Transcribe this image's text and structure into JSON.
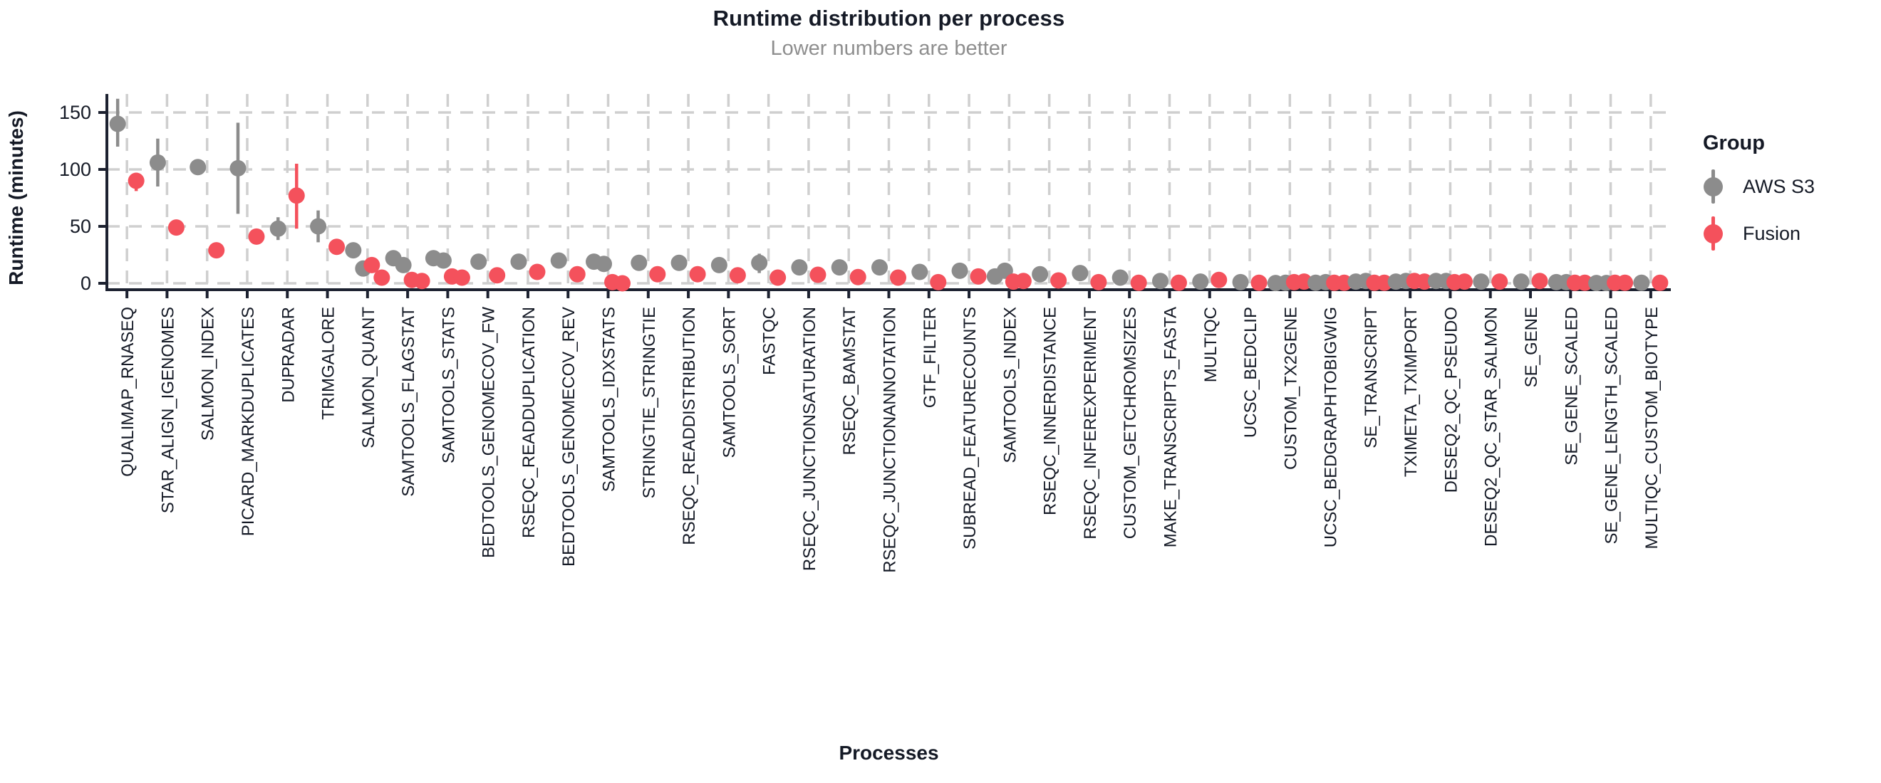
{
  "chart_data": {
    "type": "pointrange",
    "title": "Runtime distribution per process",
    "subtitle": "Lower numbers are better",
    "xlabel": "Processes",
    "ylabel": "Runtime (minutes)",
    "yticks": [
      0,
      50,
      100,
      150
    ],
    "ylim": [
      -10,
      170
    ],
    "grid": "dashed, horizontal at yticks and vertical at each category",
    "legend_position": "right",
    "legend": {
      "title": "Group",
      "series": [
        {
          "name": "AWS S3",
          "color": "#8C8C8C"
        },
        {
          "name": "Fusion",
          "color": "#F4515C"
        }
      ]
    },
    "categories": [
      {
        "name": "QUALIMAP_RNASEQ",
        "aws": {
          "points": [
            140
          ],
          "range": [
            120,
            162
          ]
        },
        "fusion": {
          "points": [
            90
          ],
          "range": [
            81,
            97
          ]
        }
      },
      {
        "name": "STAR_ALIGN_IGENOMES",
        "aws": {
          "points": [
            106
          ],
          "range": [
            85,
            127
          ]
        },
        "fusion": {
          "points": [
            49
          ],
          "range": null
        }
      },
      {
        "name": "SALMON_INDEX",
        "aws": {
          "points": [
            102
          ],
          "range": null
        },
        "fusion": {
          "points": [
            29
          ],
          "range": null
        }
      },
      {
        "name": "PICARD_MARKDUPLICATES",
        "aws": {
          "points": [
            101
          ],
          "range": [
            61,
            141
          ]
        },
        "fusion": {
          "points": [
            41
          ],
          "range": null
        }
      },
      {
        "name": "DUPRADAR",
        "aws": {
          "points": [
            48
          ],
          "range": [
            38,
            58
          ]
        },
        "fusion": {
          "points": [
            77
          ],
          "range": [
            48,
            105
          ]
        }
      },
      {
        "name": "TRIMGALORE",
        "aws": {
          "points": [
            50
          ],
          "range": [
            36,
            64
          ]
        },
        "fusion": {
          "points": [
            32
          ],
          "range": null
        }
      },
      {
        "name": "SALMON_QUANT",
        "aws": {
          "points": [
            29,
            13
          ],
          "range": null
        },
        "fusion": {
          "points": [
            16,
            5
          ],
          "range": null
        }
      },
      {
        "name": "SAMTOOLS_FLAGSTAT",
        "aws": {
          "points": [
            22,
            16
          ],
          "range": null
        },
        "fusion": {
          "points": [
            3,
            2
          ],
          "range": null
        }
      },
      {
        "name": "SAMTOOLS_STATS",
        "aws": {
          "points": [
            22,
            20
          ],
          "range": null
        },
        "fusion": {
          "points": [
            6,
            5
          ],
          "range": null
        }
      },
      {
        "name": "BEDTOOLS_GENOMECOV_FW",
        "aws": {
          "points": [
            19
          ],
          "range": null
        },
        "fusion": {
          "points": [
            7
          ],
          "range": null
        }
      },
      {
        "name": "RSEQC_READDUPLICATION",
        "aws": {
          "points": [
            19
          ],
          "range": null
        },
        "fusion": {
          "points": [
            10
          ],
          "range": null
        }
      },
      {
        "name": "BEDTOOLS_GENOMECOV_REV",
        "aws": {
          "points": [
            20
          ],
          "range": null
        },
        "fusion": {
          "points": [
            8
          ],
          "range": null
        }
      },
      {
        "name": "SAMTOOLS_IDXSTATS",
        "aws": {
          "points": [
            19,
            17
          ],
          "range": null
        },
        "fusion": {
          "points": [
            1,
            0
          ],
          "range": null
        }
      },
      {
        "name": "STRINGTIE_STRINGTIE",
        "aws": {
          "points": [
            18
          ],
          "range": null
        },
        "fusion": {
          "points": [
            8
          ],
          "range": null
        }
      },
      {
        "name": "RSEQC_READDISTRIBUTION",
        "aws": {
          "points": [
            18
          ],
          "range": null
        },
        "fusion": {
          "points": [
            8
          ],
          "range": null
        }
      },
      {
        "name": "SAMTOOLS_SORT",
        "aws": {
          "points": [
            16
          ],
          "range": null
        },
        "fusion": {
          "points": [
            7
          ],
          "range": null
        }
      },
      {
        "name": "FASTQC",
        "aws": {
          "points": [
            18
          ],
          "range": [
            9,
            26
          ]
        },
        "fusion": {
          "points": [
            5
          ],
          "range": null
        }
      },
      {
        "name": "RSEQC_JUNCTIONSATURATION",
        "aws": {
          "points": [
            14
          ],
          "range": null
        },
        "fusion": {
          "points": [
            7.5
          ],
          "range": null
        }
      },
      {
        "name": "RSEQC_BAMSTAT",
        "aws": {
          "points": [
            14
          ],
          "range": null
        },
        "fusion": {
          "points": [
            5.5
          ],
          "range": null
        }
      },
      {
        "name": "RSEQC_JUNCTIONANNOTATION",
        "aws": {
          "points": [
            14
          ],
          "range": null
        },
        "fusion": {
          "points": [
            5
          ],
          "range": null
        }
      },
      {
        "name": "GTF_FILTER",
        "aws": {
          "points": [
            10
          ],
          "range": null
        },
        "fusion": {
          "points": [
            1
          ],
          "range": null
        }
      },
      {
        "name": "SUBREAD_FEATURECOUNTS",
        "aws": {
          "points": [
            11
          ],
          "range": null
        },
        "fusion": {
          "points": [
            6
          ],
          "range": null
        }
      },
      {
        "name": "SAMTOOLS_INDEX",
        "aws": {
          "points": [
            6,
            11
          ],
          "range": null
        },
        "fusion": {
          "points": [
            1.5,
            2
          ],
          "range": null
        }
      },
      {
        "name": "RSEQC_INNERDISTANCE",
        "aws": {
          "points": [
            8
          ],
          "range": null
        },
        "fusion": {
          "points": [
            2.5
          ],
          "range": null
        }
      },
      {
        "name": "RSEQC_INFEREXPERIMENT",
        "aws": {
          "points": [
            9
          ],
          "range": null
        },
        "fusion": {
          "points": [
            1
          ],
          "range": null
        }
      },
      {
        "name": "CUSTOM_GETCHROMSIZES",
        "aws": {
          "points": [
            5
          ],
          "range": null
        },
        "fusion": {
          "points": [
            0.5
          ],
          "range": null
        }
      },
      {
        "name": "MAKE_TRANSCRIPTS_FASTA",
        "aws": {
          "points": [
            2
          ],
          "range": null
        },
        "fusion": {
          "points": [
            0.5
          ],
          "range": null
        }
      },
      {
        "name": "MULTIQC",
        "aws": {
          "points": [
            1.5
          ],
          "range": null
        },
        "fusion": {
          "points": [
            3
          ],
          "range": null
        }
      },
      {
        "name": "UCSC_BEDCLIP",
        "aws": {
          "points": [
            1
          ],
          "range": null
        },
        "fusion": {
          "points": [
            0.5
          ],
          "range": null
        }
      },
      {
        "name": "CUSTOM_TX2GENE",
        "aws": {
          "points": [
            0.2,
            0.5
          ],
          "range": null
        },
        "fusion": {
          "points": [
            1,
            1.5
          ],
          "range": null
        }
      },
      {
        "name": "UCSC_BEDGRAPHTOBIGWIG",
        "aws": {
          "points": [
            0.5,
            1
          ],
          "range": null
        },
        "fusion": {
          "points": [
            0.5,
            0.5
          ],
          "range": null
        }
      },
      {
        "name": "SE_TRANSCRIPT",
        "aws": {
          "points": [
            1.5,
            2
          ],
          "range": null
        },
        "fusion": {
          "points": [
            0.5,
            0.5
          ],
          "range": null
        }
      },
      {
        "name": "TXIMETA_TXIMPORT",
        "aws": {
          "points": [
            1.5,
            2
          ],
          "range": null
        },
        "fusion": {
          "points": [
            2,
            1.5
          ],
          "range": null
        }
      },
      {
        "name": "DESEQ2_QC_PSEUDO",
        "aws": {
          "points": [
            2,
            2
          ],
          "range": null
        },
        "fusion": {
          "points": [
            1,
            1.5
          ],
          "range": null
        }
      },
      {
        "name": "DESEQ2_QC_STAR_SALMON",
        "aws": {
          "points": [
            1.5
          ],
          "range": null
        },
        "fusion": {
          "points": [
            1.5
          ],
          "range": null
        }
      },
      {
        "name": "SE_GENE",
        "aws": {
          "points": [
            1.5
          ],
          "range": null
        },
        "fusion": {
          "points": [
            2
          ],
          "range": null
        }
      },
      {
        "name": "SE_GENE_SCALED",
        "aws": {
          "points": [
            1,
            1
          ],
          "range": null
        },
        "fusion": {
          "points": [
            0.5,
            0.5
          ],
          "range": null
        }
      },
      {
        "name": "SE_GENE_LENGTH_SCALED",
        "aws": {
          "points": [
            0.2,
            0.2
          ],
          "range": null
        },
        "fusion": {
          "points": [
            0.5,
            0.5
          ],
          "range": null
        }
      },
      {
        "name": "MULTIQC_CUSTOM_BIOTYPE",
        "aws": {
          "points": [
            0.5
          ],
          "range": null
        },
        "fusion": {
          "points": [
            0.5
          ],
          "range": null
        }
      }
    ],
    "colors": {
      "axis": "#1c2130",
      "text": "#151a26",
      "grid": "#cfcfcf",
      "subtitle": "#8e8e8e",
      "aws": "#8C8C8C",
      "fusion": "#F4515C"
    }
  }
}
